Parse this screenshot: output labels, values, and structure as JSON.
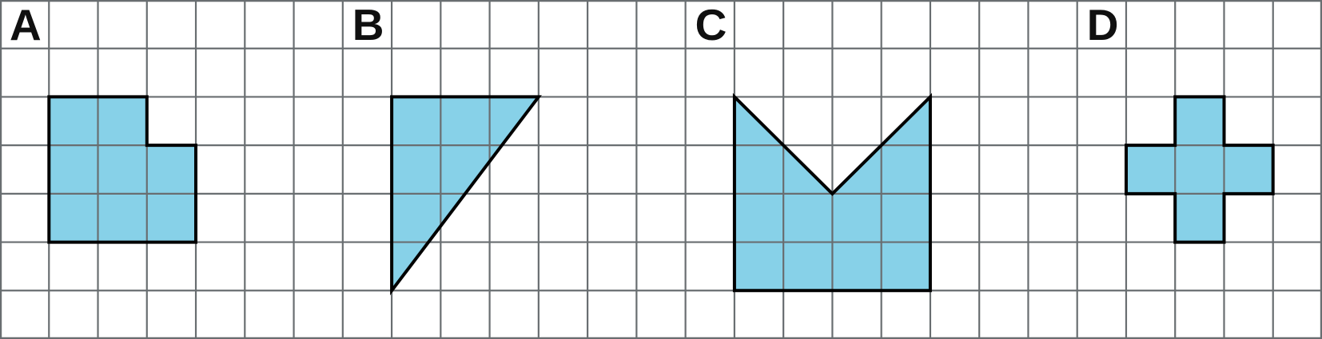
{
  "figure": {
    "description": "Four shaded polygons labeled A, B, C, D drawn on square grid paper",
    "background": "#ffffff",
    "grid": {
      "columns": 27,
      "rows": 7,
      "line_color": "#696e71",
      "line_width": 2.2
    },
    "style": {
      "shape_fill": "#87d1e8",
      "shape_outline": "#000000",
      "outline_width": 4,
      "label_color": "#101010",
      "label_font_size": 55
    },
    "labels": [
      {
        "text": "A",
        "col": 0,
        "row": 0
      },
      {
        "text": "B",
        "col": 7,
        "row": 0
      },
      {
        "text": "C",
        "col": 14,
        "row": 0
      },
      {
        "text": "D",
        "col": 22,
        "row": 0
      }
    ],
    "shapes": [
      {
        "id": "A",
        "kind": "square-with-corner-notch",
        "area_square_units": 8,
        "vertices_grid": [
          [
            1,
            2
          ],
          [
            3,
            2
          ],
          [
            3,
            3
          ],
          [
            4,
            3
          ],
          [
            4,
            5
          ],
          [
            1,
            5
          ]
        ]
      },
      {
        "id": "B",
        "kind": "right-triangle",
        "area_square_units": 6,
        "vertices_grid": [
          [
            8,
            2
          ],
          [
            11,
            2
          ],
          [
            8,
            6
          ]
        ]
      },
      {
        "id": "C",
        "kind": "square-with-v-notch",
        "area_square_units": 12,
        "vertices_grid": [
          [
            15,
            2
          ],
          [
            17,
            4
          ],
          [
            19,
            2
          ],
          [
            19,
            6
          ],
          [
            15,
            6
          ]
        ]
      },
      {
        "id": "D",
        "kind": "plus-cross",
        "area_square_units": 5,
        "vertices_grid": [
          [
            24,
            2
          ],
          [
            25,
            2
          ],
          [
            25,
            3
          ],
          [
            26,
            3
          ],
          [
            26,
            4
          ],
          [
            25,
            4
          ],
          [
            25,
            5
          ],
          [
            24,
            5
          ],
          [
            24,
            4
          ],
          [
            23,
            4
          ],
          [
            23,
            3
          ],
          [
            24,
            3
          ]
        ]
      }
    ]
  }
}
